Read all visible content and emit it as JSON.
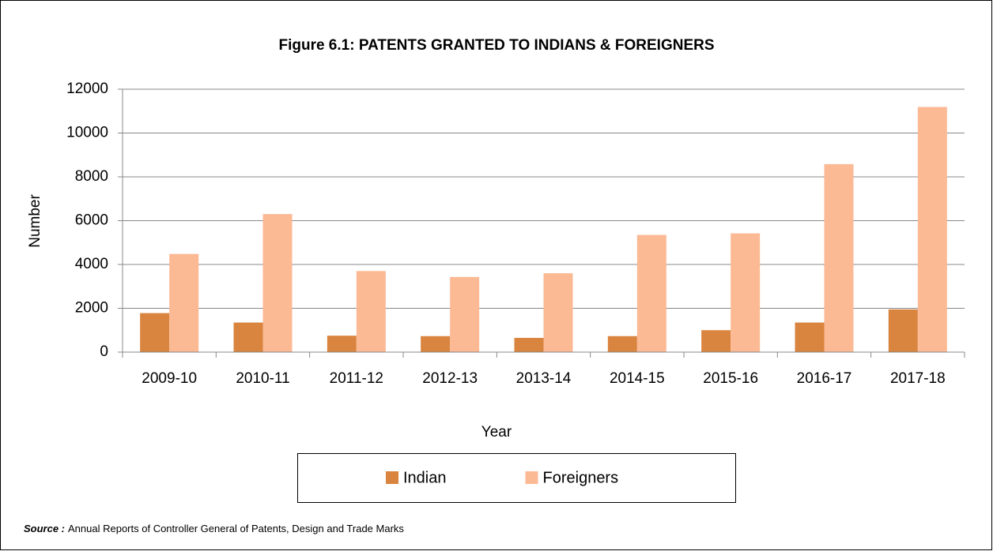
{
  "chart_data": {
    "type": "bar",
    "title": "Figure 6.1: PATENTS GRANTED TO INDIANS & FOREIGNERS",
    "x_label": "Year",
    "y_label": "Number",
    "categories": [
      "2009-10",
      "2010-11",
      "2011-12",
      "2012-13",
      "2013-14",
      "2014-15",
      "2015-16",
      "2016-17",
      "2017-18"
    ],
    "series": [
      {
        "name": "Indian",
        "color": "#d9843f",
        "values": [
          1780,
          1350,
          750,
          730,
          650,
          730,
          1000,
          1350,
          1950
        ]
      },
      {
        "name": "Foreigners",
        "color": "#fbb994",
        "values": [
          4480,
          6300,
          3700,
          3430,
          3600,
          5350,
          5420,
          8580,
          11190
        ]
      }
    ],
    "ylim": [
      0,
      12000
    ],
    "yticks": [
      0,
      2000,
      4000,
      6000,
      8000,
      10000,
      12000
    ],
    "grid": true,
    "legend": "bottom",
    "source_label": "Source :",
    "source": "Annual Reports of Controller General of Patents, Design and Trade Marks"
  }
}
